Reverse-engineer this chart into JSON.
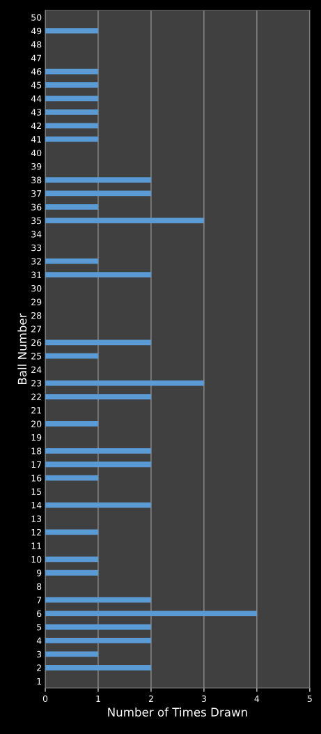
{
  "chart_data": {
    "type": "bar",
    "orientation": "horizontal",
    "xlabel": "Number of Times Drawn",
    "ylabel": "Ball Number",
    "categories": [
      "50",
      "49",
      "48",
      "47",
      "46",
      "45",
      "44",
      "43",
      "42",
      "41",
      "40",
      "39",
      "38",
      "37",
      "36",
      "35",
      "34",
      "33",
      "32",
      "31",
      "30",
      "29",
      "28",
      "27",
      "26",
      "25",
      "24",
      "23",
      "22",
      "21",
      "20",
      "19",
      "18",
      "17",
      "16",
      "15",
      "14",
      "13",
      "12",
      "11",
      "10",
      "9",
      "8",
      "7",
      "6",
      "5",
      "4",
      "3",
      "2",
      "1"
    ],
    "values": [
      0,
      1,
      0,
      0,
      1,
      1,
      1,
      1,
      1,
      1,
      0,
      0,
      2,
      2,
      1,
      3,
      0,
      0,
      1,
      2,
      0,
      0,
      0,
      0,
      2,
      1,
      0,
      3,
      2,
      0,
      1,
      0,
      2,
      2,
      1,
      0,
      2,
      0,
      1,
      0,
      1,
      1,
      0,
      2,
      4,
      2,
      2,
      1,
      2,
      0
    ],
    "color": "#5b9bd5",
    "xlim": [
      0,
      5
    ],
    "xticks": [
      0,
      1,
      2,
      3,
      4,
      5
    ],
    "grid": "x",
    "legend": false
  }
}
